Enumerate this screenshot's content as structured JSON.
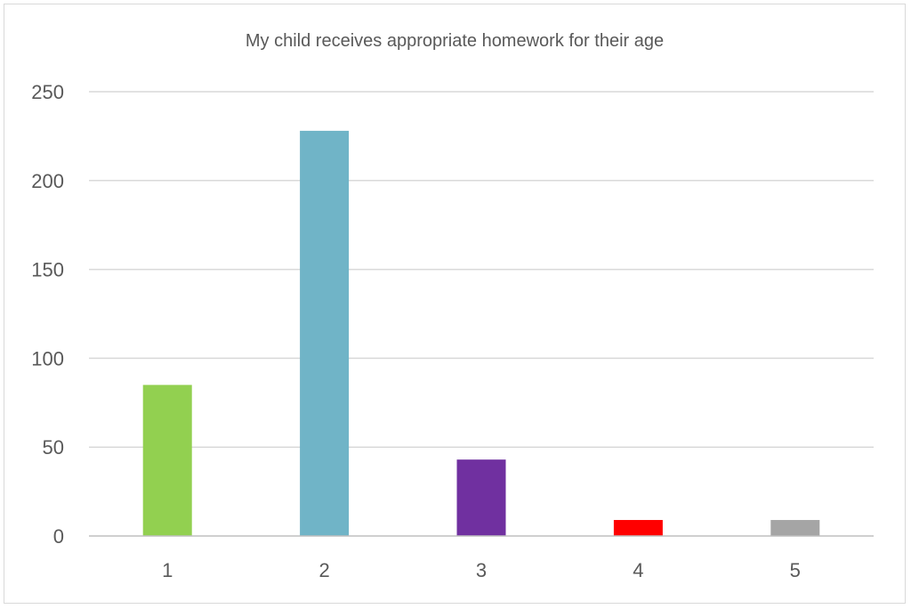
{
  "chart_data": {
    "type": "bar",
    "title": "My child receives appropriate homework for their age",
    "xlabel": "",
    "ylabel": "",
    "categories": [
      "1",
      "2",
      "3",
      "4",
      "5"
    ],
    "values": [
      85,
      228,
      43,
      9,
      9
    ],
    "colors": [
      "#92d050",
      "#70b4c7",
      "#7030a0",
      "#ff0000",
      "#a5a5a5"
    ],
    "ylim": [
      0,
      250
    ],
    "yticks": [
      0,
      50,
      100,
      150,
      200,
      250
    ],
    "ytick_labels": [
      "0",
      "50",
      "100",
      "150",
      "200",
      "250"
    ],
    "grid": true,
    "legend": "none"
  }
}
